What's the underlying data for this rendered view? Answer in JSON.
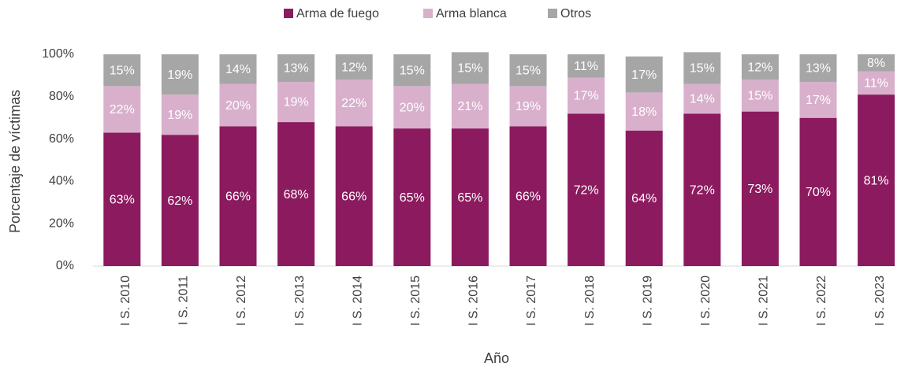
{
  "chart_data": {
    "type": "stacked_bar",
    "x_label": "Año",
    "y_label": "Porcentaje de víctimas",
    "categories": [
      "I S. 2010",
      "I S. 2011",
      "I S. 2012",
      "I S. 2013",
      "I S. 2014",
      "I S. 2015",
      "I S. 2016",
      "I S. 2017",
      "I S. 2018",
      "I S. 2019",
      "I S. 2020",
      "I S. 2021",
      "I S. 2022",
      "I S. 2023"
    ],
    "series": [
      {
        "name": "Arma de fuego",
        "color": "#8c1a5f",
        "values": [
          63,
          62,
          66,
          68,
          66,
          65,
          65,
          66,
          72,
          64,
          72,
          73,
          70,
          81
        ],
        "value_labels": [
          "63%",
          "62%",
          "66%",
          "68%",
          "66%",
          "65%",
          "65%",
          "66%",
          "72%",
          "64%",
          "72%",
          "73%",
          "70%",
          "81%"
        ]
      },
      {
        "name": "Arma blanca",
        "color": "#d8b0cc",
        "values": [
          22,
          19,
          20,
          19,
          22,
          20,
          21,
          19,
          17,
          18,
          14,
          15,
          17,
          11
        ],
        "value_labels": [
          "22%",
          "19%",
          "20%",
          "19%",
          "22%",
          "20%",
          "21%",
          "19%",
          "17%",
          "18%",
          "14%",
          "15%",
          "17%",
          "11%"
        ]
      },
      {
        "name": "Otros",
        "color": "#a6a6a6",
        "values": [
          15,
          19,
          14,
          13,
          12,
          15,
          15,
          15,
          11,
          17,
          15,
          12,
          13,
          8
        ],
        "value_labels": [
          "15%",
          "19%",
          "14%",
          "13%",
          "12%",
          "15%",
          "15%",
          "15%",
          "11%",
          "17%",
          "15%",
          "12%",
          "13%",
          "8%"
        ]
      }
    ],
    "ylim": [
      0,
      100
    ],
    "yticks": [
      {
        "value": 0,
        "label": "0%"
      },
      {
        "value": 20,
        "label": "20%"
      },
      {
        "value": 40,
        "label": "40%"
      },
      {
        "value": 60,
        "label": "60%"
      },
      {
        "value": 80,
        "label": "80%"
      },
      {
        "value": 100,
        "label": "100%"
      }
    ],
    "legend": "top"
  }
}
